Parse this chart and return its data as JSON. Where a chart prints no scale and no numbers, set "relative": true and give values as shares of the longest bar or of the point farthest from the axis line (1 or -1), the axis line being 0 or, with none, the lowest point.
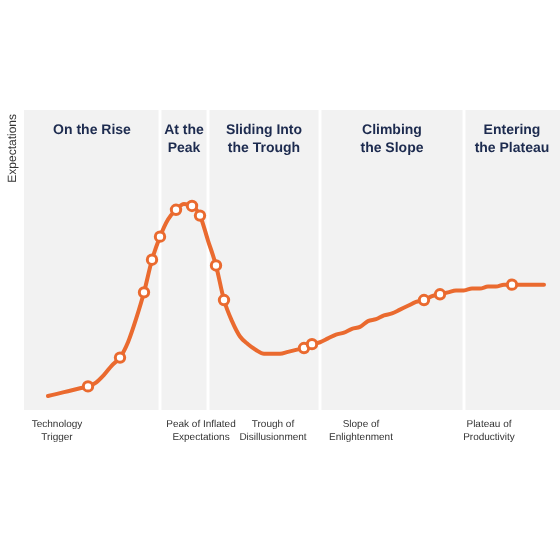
{
  "chart_data": {
    "type": "line",
    "relative": true,
    "categories": [
      null,
      null,
      null,
      null,
      "Technology Trigger",
      null,
      null,
      null,
      null,
      null,
      null,
      null,
      null,
      null,
      null,
      null,
      null,
      null,
      null,
      null,
      null,
      null,
      "Peak of Inflated Expectations",
      null,
      null,
      null,
      null,
      null,
      null,
      null,
      null,
      "Trough of Disillusionment",
      null,
      null,
      null,
      null,
      null,
      null,
      null,
      null,
      null,
      null,
      "Slope of Enlightenment",
      null,
      null,
      null,
      null,
      null,
      null,
      null,
      null,
      null,
      null,
      null,
      null,
      null,
      null,
      null,
      "Plateau of Productivity",
      null,
      null,
      null,
      null,
      null,
      null,
      null,
      null,
      null
    ],
    "series": [
      {
        "type": "line",
        "color": "#ea6a2f",
        "values": [
          null,
          null,
          null,
          0,
          0.01,
          0.02,
          0.03,
          0.04,
          0.05,
          0.07,
          0.11,
          0.16,
          0.2,
          0.28,
          0.4,
          0.54,
          0.71,
          0.83,
          0.92,
          0.97,
          1,
          0.99,
          0.94,
          0.81,
          0.68,
          0.5,
          0.39,
          0.31,
          0.27,
          0.24,
          0.22,
          0.22,
          0.22,
          0.23,
          0.24,
          0.25,
          0.27,
          0.28,
          0.3,
          0.32,
          0.33,
          0.35,
          0.36,
          0.39,
          0.4,
          0.42,
          0.43,
          0.45,
          0.47,
          0.49,
          0.5,
          0.52,
          0.53,
          0.54,
          0.55,
          0.55,
          0.56,
          0.56,
          0.57,
          0.57,
          0.58,
          0.58,
          0.58,
          0.58,
          0.58,
          0.58,
          null,
          null
        ]
      },
      {
        "type": "scatter",
        "color": "#ea6a2f",
        "marker": "circle",
        "values": [
          null,
          null,
          null,
          null,
          null,
          null,
          null,
          null,
          0.05,
          null,
          null,
          null,
          0.2,
          null,
          null,
          0.54,
          0.71,
          0.83,
          null,
          0.97,
          null,
          0.99,
          0.94,
          null,
          0.68,
          0.5,
          null,
          null,
          null,
          null,
          null,
          null,
          null,
          null,
          null,
          0.25,
          0.27,
          null,
          null,
          null,
          null,
          null,
          null,
          null,
          null,
          null,
          null,
          null,
          null,
          null,
          0.5,
          null,
          0.53,
          null,
          null,
          null,
          null,
          null,
          null,
          null,
          null,
          0.58,
          null,
          null,
          null,
          null,
          null,
          null
        ]
      }
    ],
    "annotations": [
      "Expectations",
      "On the Rise",
      "At the Peak",
      "Sliding Into the Trough",
      "Climbing the Slope",
      "Entering the Plateau"
    ]
  }
}
